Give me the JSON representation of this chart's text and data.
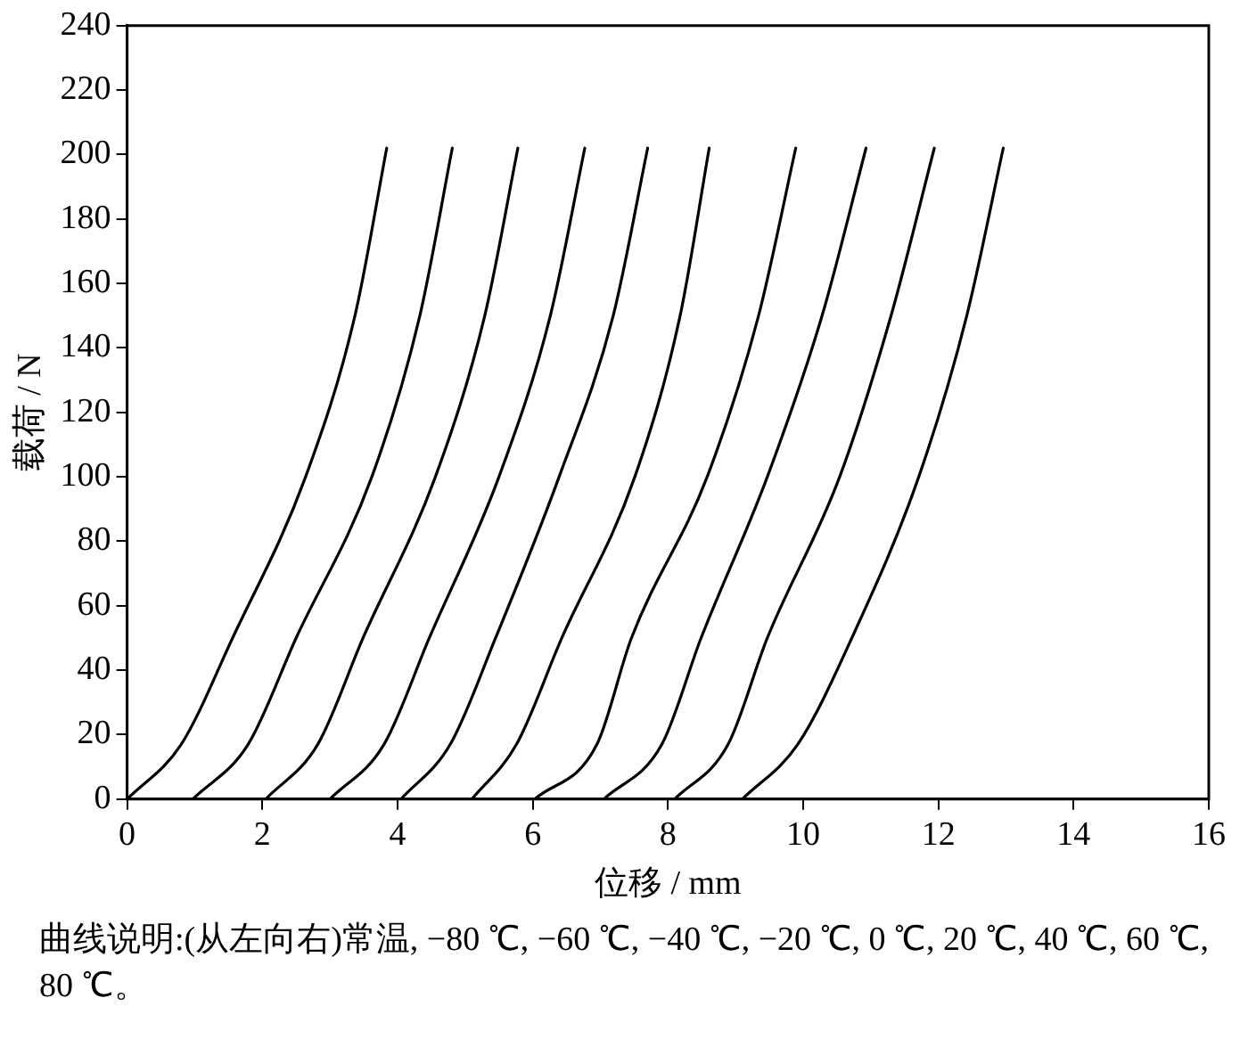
{
  "chart_data": {
    "type": "line",
    "xlabel": "位移 / mm",
    "ylabel": "载荷 / N",
    "xlim": [
      0,
      16
    ],
    "xticks": [
      0,
      2,
      4,
      6,
      8,
      10,
      12,
      14,
      16
    ],
    "ylim": [
      0,
      240
    ],
    "yticks": [
      0,
      20,
      40,
      60,
      80,
      100,
      120,
      140,
      160,
      180,
      200,
      220,
      240
    ],
    "grid": false,
    "legend": false,
    "marker": "none",
    "line_style": "solid",
    "series": [
      {
        "color": "#000000",
        "x": [
          0,
          0.8,
          1.56,
          2.64,
          3.37,
          3.84
        ],
        "values": [
          0,
          17,
          50,
          100,
          150,
          202
        ]
      },
      {
        "color": "#000000",
        "x": [
          0.97,
          1.79,
          2.5,
          3.62,
          4.33,
          4.81
        ],
        "values": [
          0,
          17,
          50,
          100,
          150,
          202
        ]
      },
      {
        "color": "#000000",
        "x": [
          2.05,
          2.82,
          3.49,
          4.56,
          5.29,
          5.78
        ],
        "values": [
          0,
          17,
          50,
          100,
          150,
          202
        ]
      },
      {
        "color": "#000000",
        "x": [
          3.0,
          3.8,
          4.47,
          5.5,
          6.26,
          6.77
        ],
        "values": [
          0,
          17,
          50,
          100,
          150,
          202
        ]
      },
      {
        "color": "#000000",
        "x": [
          4.05,
          4.78,
          5.45,
          6.39,
          7.19,
          7.7
        ],
        "values": [
          0,
          17,
          50,
          100,
          150,
          202
        ]
      },
      {
        "color": "#000000",
        "x": [
          5.1,
          5.76,
          6.43,
          7.51,
          8.18,
          8.61
        ],
        "values": [
          0,
          17,
          50,
          100,
          150,
          202
        ]
      },
      {
        "color": "#000000",
        "x": [
          6.03,
          6.95,
          7.46,
          8.58,
          9.34,
          9.89
        ],
        "values": [
          0,
          17,
          50,
          100,
          150,
          202
        ]
      },
      {
        "color": "#000000",
        "x": [
          7.05,
          7.91,
          8.49,
          9.47,
          10.28,
          10.93
        ],
        "values": [
          0,
          17,
          50,
          100,
          150,
          202
        ]
      },
      {
        "color": "#000000",
        "x": [
          8.1,
          8.89,
          9.47,
          10.54,
          11.3,
          11.94
        ],
        "values": [
          0,
          17,
          50,
          100,
          150,
          202
        ]
      },
      {
        "color": "#000000",
        "x": [
          9.1,
          9.92,
          10.72,
          11.71,
          12.42,
          12.96
        ],
        "values": [
          0,
          17,
          50,
          100,
          150,
          202
        ]
      }
    ],
    "annotations": [
      "曲线说明:(从左向右)常温, −80 ℃, −60 ℃, −40 ℃, −20 ℃, 0 ℃, 20 ℃, 40 ℃, 60 ℃, 80 ℃。"
    ]
  }
}
